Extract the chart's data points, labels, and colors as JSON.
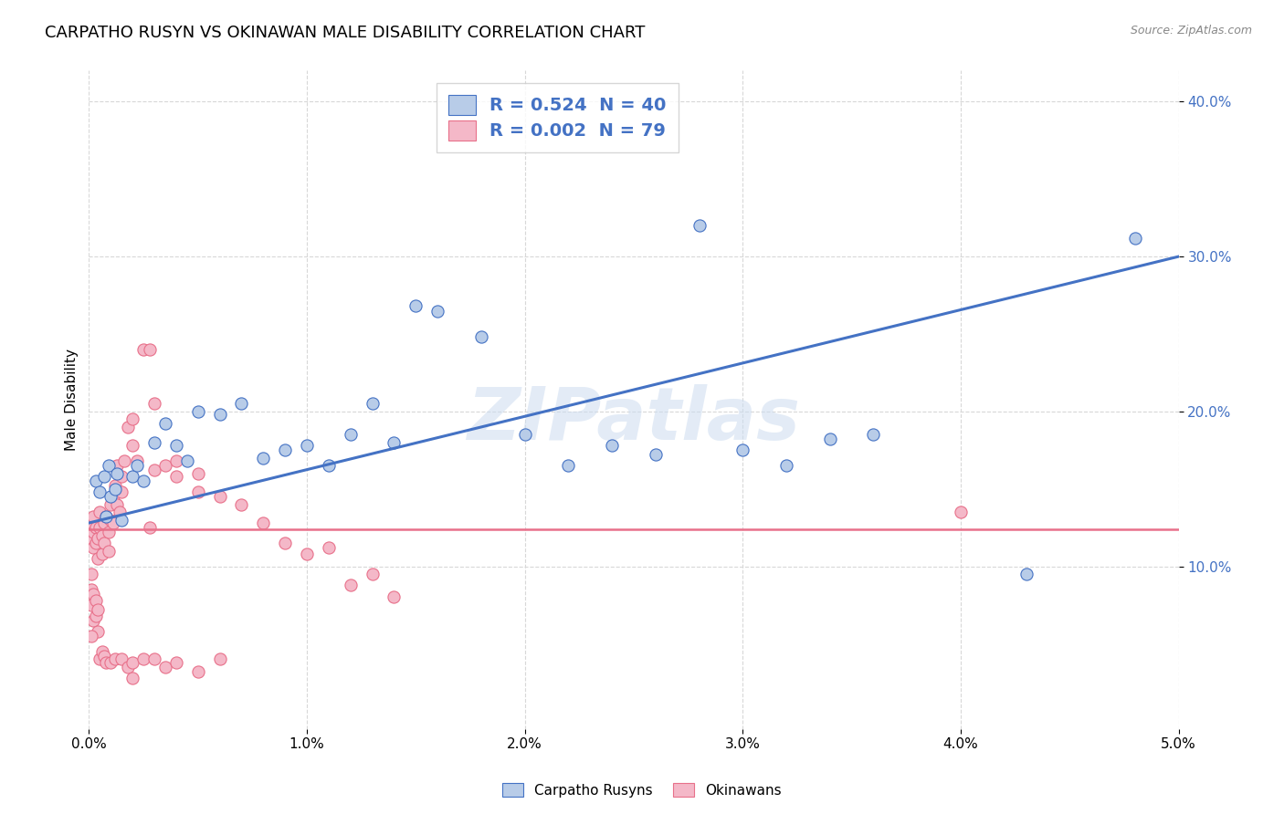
{
  "title": "CARPATHO RUSYN VS OKINAWAN MALE DISABILITY CORRELATION CHART",
  "source": "Source: ZipAtlas.com",
  "ylabel": "Male Disability",
  "carpatho_rusyns_label": "Carpatho Rusyns",
  "okinawans_label": "Okinawans",
  "bg_color": "#ffffff",
  "grid_color": "#d8d8d8",
  "blue_color": "#4472c4",
  "pink_color": "#e8708a",
  "scatter_blue_face": "#b8cce8",
  "scatter_blue_edge": "#4472c4",
  "scatter_pink_face": "#f4b8c8",
  "scatter_pink_edge": "#e8708a",
  "watermark": "ZIPatlas",
  "legend_line1": "R = 0.524  N = 40",
  "legend_line2": "R = 0.002  N = 79",
  "blue_scatter_x": [
    0.0003,
    0.0005,
    0.0007,
    0.0008,
    0.0009,
    0.001,
    0.0012,
    0.0013,
    0.0015,
    0.002,
    0.0022,
    0.0025,
    0.003,
    0.0035,
    0.004,
    0.0045,
    0.005,
    0.006,
    0.007,
    0.008,
    0.009,
    0.01,
    0.011,
    0.012,
    0.013,
    0.014,
    0.015,
    0.016,
    0.018,
    0.02,
    0.022,
    0.024,
    0.026,
    0.028,
    0.03,
    0.032,
    0.034,
    0.036,
    0.043,
    0.048
  ],
  "blue_scatter_y": [
    0.155,
    0.148,
    0.158,
    0.132,
    0.165,
    0.145,
    0.15,
    0.16,
    0.13,
    0.158,
    0.165,
    0.155,
    0.18,
    0.192,
    0.178,
    0.168,
    0.2,
    0.198,
    0.205,
    0.17,
    0.175,
    0.178,
    0.165,
    0.185,
    0.205,
    0.18,
    0.268,
    0.265,
    0.248,
    0.185,
    0.165,
    0.178,
    0.172,
    0.32,
    0.175,
    0.165,
    0.182,
    0.185,
    0.095,
    0.312
  ],
  "pink_scatter_x": [
    0.0001,
    0.0001,
    0.0002,
    0.0002,
    0.0002,
    0.0003,
    0.0003,
    0.0004,
    0.0004,
    0.0005,
    0.0005,
    0.0006,
    0.0006,
    0.0007,
    0.0007,
    0.0008,
    0.0009,
    0.0009,
    0.001,
    0.001,
    0.0011,
    0.0011,
    0.0012,
    0.0013,
    0.0013,
    0.0014,
    0.0015,
    0.0015,
    0.0016,
    0.0018,
    0.002,
    0.002,
    0.0022,
    0.0025,
    0.0028,
    0.003,
    0.003,
    0.0035,
    0.004,
    0.004,
    0.005,
    0.005,
    0.006,
    0.007,
    0.008,
    0.009,
    0.01,
    0.011,
    0.012,
    0.013,
    0.014,
    0.0001,
    0.0001,
    0.0001,
    0.0002,
    0.0002,
    0.0003,
    0.0003,
    0.0004,
    0.0004,
    0.0005,
    0.0006,
    0.0007,
    0.0008,
    0.001,
    0.0012,
    0.0015,
    0.0018,
    0.002,
    0.002,
    0.0025,
    0.003,
    0.0035,
    0.004,
    0.005,
    0.006,
    0.04,
    0.0028,
    0.0001
  ],
  "pink_scatter_y": [
    0.128,
    0.118,
    0.112,
    0.122,
    0.132,
    0.115,
    0.125,
    0.105,
    0.118,
    0.125,
    0.135,
    0.108,
    0.12,
    0.115,
    0.128,
    0.132,
    0.11,
    0.122,
    0.14,
    0.13,
    0.145,
    0.128,
    0.152,
    0.165,
    0.14,
    0.135,
    0.158,
    0.148,
    0.168,
    0.19,
    0.195,
    0.178,
    0.168,
    0.24,
    0.24,
    0.205,
    0.162,
    0.165,
    0.158,
    0.168,
    0.16,
    0.148,
    0.145,
    0.14,
    0.128,
    0.115,
    0.108,
    0.112,
    0.088,
    0.095,
    0.08,
    0.085,
    0.095,
    0.075,
    0.065,
    0.082,
    0.078,
    0.068,
    0.058,
    0.072,
    0.04,
    0.045,
    0.042,
    0.038,
    0.038,
    0.04,
    0.04,
    0.035,
    0.028,
    0.038,
    0.04,
    0.04,
    0.035,
    0.038,
    0.032,
    0.04,
    0.135,
    0.125,
    0.055
  ],
  "blue_line_x": [
    0.0,
    0.05
  ],
  "blue_line_y": [
    0.128,
    0.3
  ],
  "pink_line_x": [
    0.0,
    0.05
  ],
  "pink_line_y": [
    0.124,
    0.124
  ],
  "xlim": [
    0.0,
    0.05
  ],
  "ylim": [
    -0.005,
    0.42
  ],
  "xticks": [
    0.0,
    0.01,
    0.02,
    0.03,
    0.04,
    0.05
  ],
  "yticks_right": [
    0.1,
    0.2,
    0.3,
    0.4
  ],
  "title_fontsize": 13,
  "axis_label_fontsize": 11,
  "tick_fontsize": 11
}
